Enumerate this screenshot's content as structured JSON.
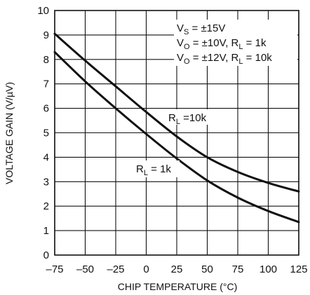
{
  "chart_data": {
    "type": "line",
    "xlabel": "CHIP TEMPERATURE (°C)",
    "ylabel": "VOLTAGE GAIN (V/µV)",
    "xlim": [
      -75,
      125
    ],
    "ylim": [
      0,
      10
    ],
    "xticks": [
      -75,
      -50,
      -25,
      0,
      25,
      50,
      75,
      100,
      125
    ],
    "xtick_labels": [
      "–75",
      "–50",
      "–25",
      "0",
      "25",
      "50",
      "75",
      "100",
      "125"
    ],
    "yticks": [
      0,
      1,
      2,
      3,
      4,
      5,
      6,
      7,
      8,
      9,
      10
    ],
    "ytick_labels": [
      "0",
      "1",
      "2",
      "3",
      "4",
      "5",
      "6",
      "7",
      "8",
      "9",
      "10"
    ],
    "grid": true,
    "legend": "none",
    "conditions": [
      {
        "main": "V",
        "sub": "S",
        "rest": " = ±15V"
      },
      {
        "main": "V",
        "sub": "O",
        "mid": " = ±10V, R",
        "sub2": "L",
        "rest": " = 1k"
      },
      {
        "main": "V",
        "sub": "O",
        "mid": " = ±12V, R",
        "sub2": "L",
        "rest": " = 10k"
      }
    ],
    "series": [
      {
        "label_main": "R",
        "label_sub": "L",
        "label_rest": " =10k",
        "x": [
          -75,
          -50,
          -25,
          0,
          25,
          50,
          75,
          100,
          125
        ],
        "y": [
          9.05,
          7.95,
          6.9,
          5.85,
          4.85,
          4.0,
          3.4,
          2.95,
          2.6
        ]
      },
      {
        "label_main": "R",
        "label_sub": "L",
        "label_rest": " = 1k",
        "x": [
          -75,
          -50,
          -25,
          0,
          25,
          50,
          75,
          100,
          125
        ],
        "y": [
          8.3,
          7.1,
          6.0,
          4.95,
          3.95,
          3.05,
          2.35,
          1.8,
          1.35
        ]
      }
    ]
  }
}
